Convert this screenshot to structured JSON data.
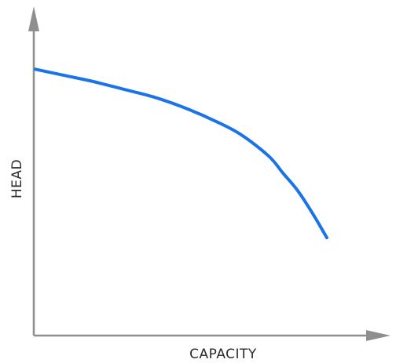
{
  "chart_data": {
    "type": "line",
    "title": "",
    "xlabel": "CAPACITY",
    "ylabel": "HEAD",
    "grid": false,
    "legend": "none",
    "axis_values_printed": false,
    "xlim": [
      0,
      1
    ],
    "ylim": [
      0,
      1
    ],
    "curve_color": "#1a73e8",
    "axis_color": "#8f8f8f",
    "series": [
      {
        "x": [
          0.0,
          0.1,
          0.2,
          0.3,
          0.4,
          0.5,
          0.6,
          0.7,
          0.8,
          0.85,
          0.9,
          0.95,
          1.0
        ],
        "values": [
          0.98,
          0.955,
          0.93,
          0.9,
          0.87,
          0.83,
          0.78,
          0.72,
          0.63,
          0.56,
          0.49,
          0.4,
          0.3
        ]
      }
    ]
  }
}
